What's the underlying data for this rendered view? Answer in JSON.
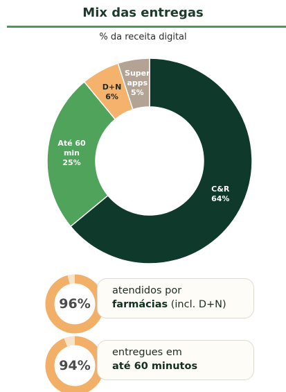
{
  "chart_data": {
    "type": "donut",
    "title": "Mix das entregas",
    "subtitle": "% da receita digital",
    "categories": [
      "C&R",
      "Até 60 min",
      "D+N",
      "Super apps"
    ],
    "values": [
      64,
      25,
      6,
      5
    ],
    "value_labels": [
      "64%",
      "25%",
      "6%",
      "5%"
    ],
    "colors": [
      "#0f3a2b",
      "#4fa35b",
      "#f5b26c",
      "#b3a394"
    ]
  },
  "stats": [
    {
      "value": 96,
      "value_label": "96%",
      "text_before": "atendidos por",
      "text_bold": "farmácias",
      "text_after": "(incl. D+N)"
    },
    {
      "value": 94,
      "value_label": "94%",
      "text_before": "entregues em",
      "text_bold": "até 60 minutos"
    }
  ]
}
